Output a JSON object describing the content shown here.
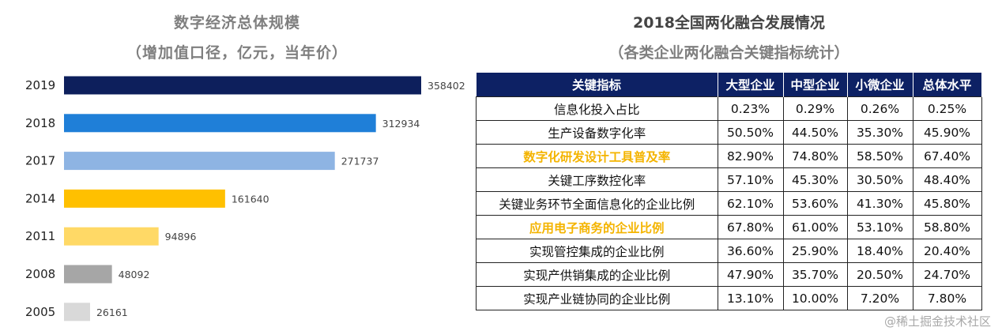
{
  "left_chart": {
    "title": "数字经济总体规模",
    "subtitle": "（增加值口径，亿元，当年价）"
  },
  "chart_data": [
    {
      "type": "bar",
      "orientation": "horizontal",
      "title": "数字经济总体规模",
      "subtitle": "（增加值口径，亿元，当年价）",
      "categories": [
        "2019",
        "2018",
        "2017",
        "2014",
        "2011",
        "2008",
        "2005"
      ],
      "values": [
        358402,
        312934,
        271737,
        161640,
        94896,
        48092,
        26161
      ],
      "colors": [
        "#0d1f5c",
        "#1f7fd8",
        "#8eb4e3",
        "#ffc000",
        "#ffd966",
        "#a6a6a6",
        "#d9d9d9"
      ],
      "xlim": [
        0,
        358402
      ],
      "grid": false,
      "legend": "none",
      "data_labels": true
    },
    {
      "type": "table",
      "title": "2018全国两化融合发展情况",
      "subtitle": "（各类企业两化融合关键指标统计）",
      "columns": [
        "关键指标",
        "大型企业",
        "中型企业",
        "小微企业",
        "总体水平"
      ],
      "rows": [
        {
          "label": "信息化投入占比",
          "values": [
            "0.23%",
            "0.29%",
            "0.26%",
            "0.25%"
          ],
          "highlight": false
        },
        {
          "label": "生产设备数字化率",
          "values": [
            "50.50%",
            "44.50%",
            "35.30%",
            "45.90%"
          ],
          "highlight": false
        },
        {
          "label": "数字化研发设计工具普及率",
          "values": [
            "82.90%",
            "74.80%",
            "58.50%",
            "67.40%"
          ],
          "highlight": true
        },
        {
          "label": "关键工序数控化率",
          "values": [
            "57.10%",
            "45.30%",
            "30.50%",
            "48.40%"
          ],
          "highlight": false
        },
        {
          "label": "关键业务环节全面信息化的企业比例",
          "values": [
            "62.10%",
            "53.60%",
            "41.30%",
            "45.80%"
          ],
          "highlight": false
        },
        {
          "label": "应用电子商务的企业比例",
          "values": [
            "67.80%",
            "61.00%",
            "53.10%",
            "58.80%"
          ],
          "highlight": true
        },
        {
          "label": "实现管控集成的企业比例",
          "values": [
            "36.60%",
            "25.90%",
            "18.40%",
            "20.40%"
          ],
          "highlight": false
        },
        {
          "label": "实现产供销集成的企业比例",
          "values": [
            "47.90%",
            "35.70%",
            "20.50%",
            "24.70%"
          ],
          "highlight": false
        },
        {
          "label": "实现产业链协同的企业比例",
          "values": [
            "13.10%",
            "10.00%",
            "7.20%",
            "7.80%"
          ],
          "highlight": false
        }
      ],
      "header_color": "#0d2164",
      "highlight_color": "#f4b400"
    }
  ],
  "right_table": {
    "title": "2018全国两化融合发展情况",
    "subtitle": "（各类企业两化融合关键指标统计）"
  },
  "watermark": "@稀土掘金技术社区"
}
